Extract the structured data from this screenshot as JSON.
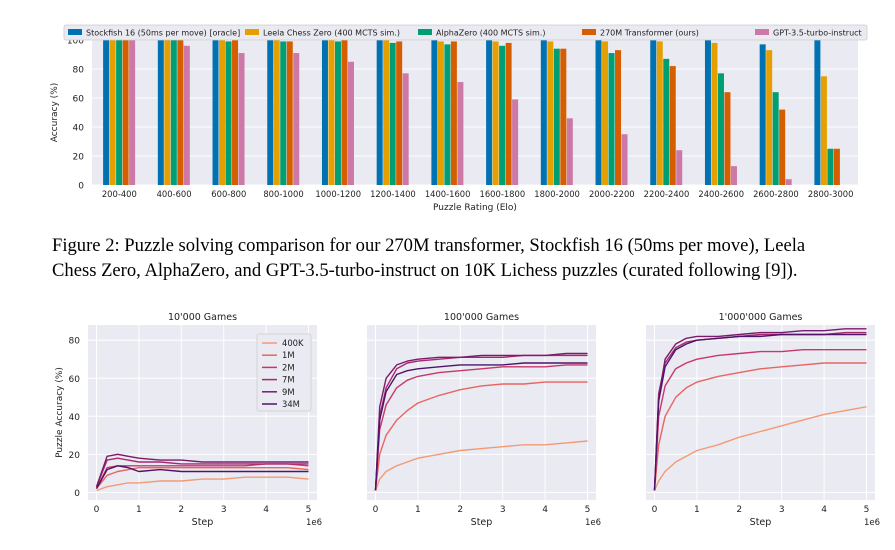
{
  "figure2": {
    "caption": {
      "line1": "Figure 2: Puzzle solving comparison for our 270M transformer, Stockfish 16 (50ms per move), Leela",
      "line2": "Chess Zero, AlphaZero, and GPT-3.5-turbo-instruct on 10K Lichess puzzles (curated following [9])."
    }
  },
  "chart_data": [
    {
      "type": "bar",
      "title": "",
      "xlabel": "Puzzle Rating (Elo)",
      "ylabel": "Accuracy (%)",
      "ylim": [
        0,
        100
      ],
      "yticks": [
        "0",
        "20",
        "40",
        "60",
        "80",
        "100"
      ],
      "grid": true,
      "legend_position": "top",
      "categories": [
        "200-400",
        "400-600",
        "600-800",
        "800-1000",
        "1000-1200",
        "1200-1400",
        "1400-1600",
        "1600-1800",
        "1800-2000",
        "2000-2200",
        "2200-2400",
        "2400-2600",
        "2600-2800",
        "2800-3000"
      ],
      "series": [
        {
          "name": "Stockfish 16 (50ms per move) [oracle]",
          "color": "#0072b2",
          "values": [
            100,
            100,
            100,
            100,
            100,
            100,
            100,
            100,
            100,
            100,
            100,
            100,
            97,
            100
          ]
        },
        {
          "name": "Leela Chess Zero (400 MCTS sim.)",
          "color": "#e69f00",
          "values": [
            100,
            100,
            100,
            100,
            100,
            100,
            99,
            99,
            99,
            99,
            99,
            98,
            93,
            75
          ]
        },
        {
          "name": "AlphaZero (400 MCTS sim.)",
          "color": "#009e73",
          "values": [
            100,
            100,
            99,
            99,
            99,
            98,
            97,
            96,
            94,
            91,
            87,
            77,
            64,
            25
          ]
        },
        {
          "name": "270M Transformer (ours)",
          "color": "#d55e00",
          "values": [
            100,
            100,
            100,
            99,
            100,
            99,
            99,
            98,
            94,
            93,
            82,
            64,
            52,
            25
          ]
        },
        {
          "name": "GPT-3.5-turbo-instruct",
          "color": "#cc79a7",
          "values": [
            100,
            96,
            91,
            91,
            85,
            77,
            71,
            59,
            46,
            35,
            24,
            13,
            4,
            0
          ]
        }
      ]
    },
    {
      "type": "line",
      "title": "10'000 Games",
      "xlabel": "Step",
      "ylabel": "Puzzle Accuracy (%)",
      "x_multiplier": "1e6",
      "xlim": [
        0,
        5
      ],
      "ylim": [
        0,
        88
      ],
      "xticks": [
        "0",
        "1",
        "2",
        "3",
        "4",
        "5"
      ],
      "yticks": [
        "0",
        "20",
        "40",
        "60",
        "80"
      ],
      "grid": true,
      "legend_position": "top-right",
      "x": [
        0,
        0.25,
        0.5,
        0.75,
        1,
        1.5,
        2,
        2.5,
        3,
        3.5,
        4,
        4.5,
        5
      ],
      "series": [
        {
          "name": "400K",
          "color": "#f39a74",
          "values": [
            1,
            3,
            4,
            5,
            5,
            6,
            6,
            7,
            7,
            8,
            8,
            8,
            7
          ]
        },
        {
          "name": "1M",
          "color": "#e8655f",
          "values": [
            2,
            9,
            11,
            12,
            13,
            13,
            13,
            13,
            13,
            13,
            13,
            13,
            12
          ]
        },
        {
          "name": "2M",
          "color": "#c7386a",
          "values": [
            2,
            13,
            14,
            14,
            14,
            14,
            14,
            14,
            14,
            14,
            15,
            15,
            14
          ]
        },
        {
          "name": "7M",
          "color": "#a8286e",
          "values": [
            3,
            17,
            18,
            17,
            16,
            16,
            15,
            15,
            15,
            15,
            15,
            15,
            15
          ]
        },
        {
          "name": "9M",
          "color": "#7b1b6a",
          "values": [
            3,
            19,
            20,
            19,
            18,
            17,
            17,
            16,
            16,
            16,
            16,
            16,
            16
          ]
        },
        {
          "name": "34M",
          "color": "#4f136a",
          "values": [
            2,
            12,
            14,
            13,
            11,
            12,
            11,
            11,
            11,
            11,
            11,
            11,
            11
          ]
        }
      ]
    },
    {
      "type": "line",
      "title": "100'000 Games",
      "xlabel": "Step",
      "x_multiplier": "1e6",
      "xlim": [
        0,
        5
      ],
      "ylim": [
        0,
        88
      ],
      "xticks": [
        "0",
        "1",
        "2",
        "3",
        "4",
        "5"
      ],
      "grid": true,
      "x": [
        0,
        0.1,
        0.25,
        0.5,
        0.75,
        1,
        1.5,
        2,
        2.5,
        3,
        3.5,
        4,
        4.5,
        5
      ],
      "series": [
        {
          "name": "400K",
          "values": [
            1,
            7,
            11,
            14,
            16,
            18,
            20,
            22,
            23,
            24,
            25,
            25,
            26,
            27
          ]
        },
        {
          "name": "1M",
          "values": [
            1,
            20,
            30,
            38,
            43,
            47,
            51,
            54,
            56,
            57,
            57,
            58,
            58,
            58
          ]
        },
        {
          "name": "2M",
          "values": [
            1,
            33,
            46,
            55,
            59,
            61,
            63,
            64,
            65,
            66,
            66,
            66,
            67,
            67
          ]
        },
        {
          "name": "7M",
          "values": [
            1,
            40,
            55,
            65,
            68,
            69,
            70,
            71,
            71,
            71,
            72,
            72,
            72,
            72
          ]
        },
        {
          "name": "9M",
          "values": [
            1,
            45,
            60,
            67,
            69,
            70,
            71,
            71,
            72,
            72,
            72,
            72,
            73,
            73
          ]
        },
        {
          "name": "34M",
          "values": [
            1,
            38,
            53,
            62,
            64,
            65,
            66,
            67,
            67,
            67,
            68,
            68,
            68,
            68
          ]
        }
      ]
    },
    {
      "type": "line",
      "title": "1'000'000 Games",
      "xlabel": "Step",
      "x_multiplier": "1e6",
      "xlim": [
        0,
        5
      ],
      "ylim": [
        0,
        88
      ],
      "xticks": [
        "0",
        "1",
        "2",
        "3",
        "4",
        "5"
      ],
      "grid": true,
      "x": [
        0,
        0.1,
        0.25,
        0.5,
        0.75,
        1,
        1.5,
        2,
        2.5,
        3,
        3.5,
        4,
        4.5,
        5
      ],
      "series": [
        {
          "name": "400K",
          "values": [
            1,
            6,
            11,
            16,
            19,
            22,
            25,
            29,
            32,
            35,
            38,
            41,
            43,
            45
          ]
        },
        {
          "name": "1M",
          "values": [
            1,
            25,
            40,
            50,
            55,
            58,
            61,
            63,
            65,
            66,
            67,
            68,
            68,
            68
          ]
        },
        {
          "name": "2M",
          "values": [
            1,
            40,
            56,
            65,
            68,
            70,
            72,
            73,
            74,
            74,
            75,
            75,
            75,
            75
          ]
        },
        {
          "name": "7M",
          "values": [
            1,
            52,
            68,
            76,
            79,
            80,
            81,
            82,
            83,
            83,
            83,
            83,
            84,
            84
          ]
        },
        {
          "name": "9M",
          "values": [
            1,
            50,
            70,
            78,
            81,
            82,
            82,
            83,
            84,
            84,
            85,
            85,
            86,
            86
          ]
        },
        {
          "name": "34M",
          "values": [
            1,
            48,
            66,
            75,
            78,
            80,
            81,
            82,
            82,
            83,
            83,
            83,
            83,
            83
          ]
        }
      ]
    }
  ]
}
